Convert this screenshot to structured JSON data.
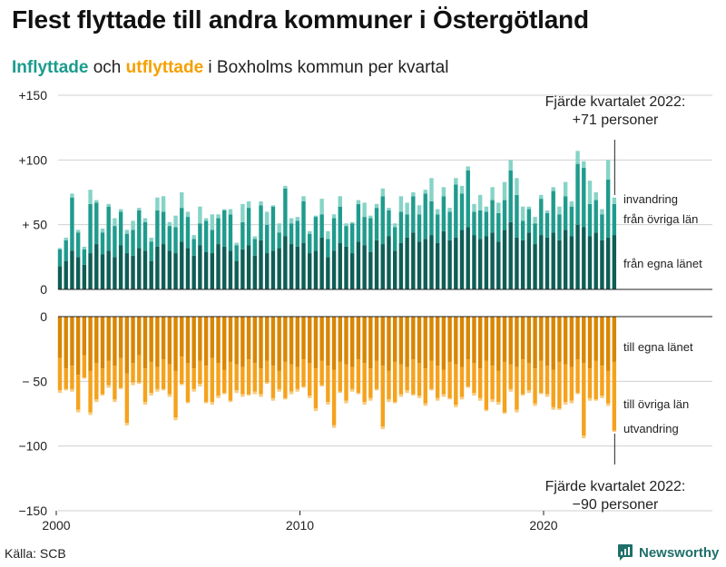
{
  "title": "Flest flyttade till andra kommuner i Östergötland",
  "subtitle": {
    "in_word": "Inflyttade",
    "mid_word": " och ",
    "out_word": "utflyttade",
    "rest": " i Boxholms kommun per kvartal"
  },
  "colors": {
    "in_own": "#0e5e56",
    "in_other": "#1f9b8d",
    "in_imm": "#86d3c7",
    "out_own": "#d98600",
    "out_other": "#f5a21c",
    "out_emi": "#f8cc80"
  },
  "source": "Källa: SCB",
  "brand": "Newsworthy",
  "chart_data": {
    "type": "bar",
    "title": "Inflyttade och utflyttade i Boxholms kommun per kvartal",
    "ylim_top": [
      0,
      150
    ],
    "ylim_bottom": [
      -150,
      0
    ],
    "y_ticks_top": [
      {
        "value": 0,
        "label": "0"
      },
      {
        "value": 50,
        "label": "+ 50"
      },
      {
        "value": 100,
        "label": "+100"
      },
      {
        "value": 150,
        "label": "+150"
      }
    ],
    "y_ticks_bottom": [
      {
        "value": 0,
        "label": "0"
      },
      {
        "value": -50,
        "label": "− 50"
      },
      {
        "value": -100,
        "label": "−100"
      },
      {
        "value": -150,
        "label": "−150"
      }
    ],
    "x_ticks": [
      {
        "year": 2000,
        "label": "2000"
      },
      {
        "year": 2010,
        "label": "2010"
      },
      {
        "year": 2020,
        "label": "2020"
      }
    ],
    "start_year": 2000,
    "quarters": 92,
    "in_series": [
      {
        "name": "från egna länet",
        "key": "own",
        "values": [
          18,
          22,
          30,
          25,
          19,
          28,
          35,
          27,
          30,
          25,
          34,
          28,
          26,
          32,
          30,
          22,
          33,
          35,
          30,
          28,
          37,
          32,
          26,
          34,
          29,
          28,
          35,
          33,
          30,
          22,
          31,
          34,
          26,
          38,
          28,
          30,
          32,
          41,
          35,
          33,
          36,
          28,
          30,
          40,
          25,
          30,
          36,
          33,
          28,
          37,
          34,
          29,
          38,
          35,
          41,
          30,
          36,
          40,
          44,
          37,
          39,
          42,
          36,
          45,
          38,
          40,
          46,
          48,
          42,
          39,
          41,
          44,
          37,
          46,
          52,
          40,
          38,
          44,
          35,
          42,
          40,
          44,
          38,
          46,
          41,
          50,
          48,
          41,
          44,
          38,
          40,
          42
        ]
      },
      {
        "name": "från övriga län",
        "key": "other",
        "values": [
          13,
          16,
          41,
          19,
          12,
          38,
          32,
          17,
          34,
          24,
          26,
          15,
          20,
          29,
          22,
          15,
          28,
          25,
          19,
          20,
          26,
          24,
          13,
          17,
          24,
          18,
          20,
          28,
          28,
          12,
          21,
          29,
          13,
          27,
          22,
          34,
          12,
          37,
          16,
          20,
          32,
          15,
          26,
          18,
          14,
          25,
          28,
          16,
          23,
          29,
          22,
          26,
          25,
          37,
          20,
          18,
          24,
          18,
          28,
          21,
          35,
          26,
          22,
          27,
          22,
          41,
          28,
          44,
          18,
          22,
          19,
          25,
          22,
          23,
          40,
          33,
          15,
          18,
          16,
          28,
          19,
          32,
          20,
          26,
          23,
          47,
          46,
          25,
          25,
          20,
          45,
          24
        ]
      },
      {
        "name": "invandring",
        "key": "imm",
        "values": [
          1,
          2,
          3,
          2,
          2,
          11,
          2,
          3,
          2,
          6,
          2,
          3,
          7,
          2,
          3,
          3,
          10,
          12,
          3,
          9,
          12,
          4,
          3,
          13,
          2,
          12,
          3,
          1,
          4,
          2,
          14,
          5,
          2,
          3,
          10,
          1,
          7,
          2,
          4,
          3,
          4,
          2,
          1,
          12,
          6,
          3,
          8,
          2,
          1,
          3,
          11,
          2,
          3,
          6,
          2,
          3,
          12,
          9,
          3,
          7,
          3,
          18,
          4,
          7,
          3,
          5,
          6,
          3,
          6,
          12,
          4,
          10,
          8,
          14,
          8,
          13,
          11,
          2,
          5,
          3,
          2,
          3,
          6,
          11,
          4,
          10,
          5,
          18,
          6,
          4,
          15,
          5
        ]
      }
    ],
    "out_series": [
      {
        "name": "till egna länet",
        "key": "own",
        "values": [
          -32,
          -40,
          -38,
          -45,
          -30,
          -42,
          -36,
          -40,
          -34,
          -38,
          -32,
          -44,
          -36,
          -30,
          -40,
          -35,
          -39,
          -33,
          -37,
          -42,
          -31,
          -36,
          -40,
          -34,
          -38,
          -32,
          -36,
          -41,
          -35,
          -37,
          -39,
          -33,
          -36,
          -40,
          -34,
          -38,
          -42,
          -35,
          -37,
          -39,
          -33,
          -36,
          -40,
          -34,
          -38,
          -41,
          -35,
          -37,
          -39,
          -33,
          -36,
          -40,
          -34,
          -38,
          -42,
          -35,
          -37,
          -39,
          -33,
          -36,
          -40,
          -34,
          -38,
          -41,
          -35,
          -37,
          -39,
          -33,
          -36,
          -40,
          -34,
          -38,
          -42,
          -35,
          -37,
          -39,
          -33,
          -36,
          -40,
          -34,
          -38,
          -41,
          -35,
          -37,
          -39,
          -33,
          -36,
          -40,
          -34,
          -38,
          -42,
          -35
        ]
      },
      {
        "name": "till övriga län",
        "key": "other",
        "values": [
          -25,
          -16,
          -18,
          -27,
          -17,
          -32,
          -28,
          -20,
          -19,
          -26,
          -23,
          -38,
          -15,
          -21,
          -26,
          -24,
          -17,
          -23,
          -23,
          -36,
          -21,
          -30,
          -16,
          -18,
          -28,
          -34,
          -25,
          -18,
          -30,
          -20,
          -21,
          -27,
          -22,
          -20,
          -17,
          -25,
          -14,
          -28,
          -21,
          -17,
          -21,
          -25,
          -31,
          -19,
          -28,
          -43,
          -23,
          -28,
          -17,
          -26,
          -30,
          -23,
          -22,
          -47,
          -22,
          -31,
          -23,
          -18,
          -27,
          -25,
          -27,
          -22,
          -25,
          -19,
          -28,
          -31,
          -23,
          -21,
          -23,
          -23,
          -38,
          -26,
          -24,
          -39,
          -19,
          -33,
          -27,
          -21,
          -27,
          -25,
          -22,
          -29,
          -36,
          -29,
          -26,
          -26,
          -56,
          -23,
          -30,
          -23,
          -25,
          -53
        ]
      },
      {
        "name": "utvandring",
        "key": "emi",
        "values": [
          -2,
          -1,
          -2,
          -2,
          -1,
          -2,
          -2,
          -1,
          -2,
          -2,
          -1,
          -2,
          -2,
          -1,
          -2,
          -2,
          -2,
          -1,
          -2,
          -2,
          -1,
          -1,
          -2,
          -2,
          -1,
          -2,
          -2,
          -1,
          -1,
          -2,
          -2,
          -1,
          -2,
          -2,
          -1,
          -2,
          -2,
          -1,
          -2,
          -2,
          -1,
          -2,
          -2,
          -1,
          -2,
          -2,
          -1,
          -2,
          -2,
          -1,
          -2,
          -2,
          -1,
          -2,
          -2,
          -1,
          -2,
          -2,
          -1,
          -2,
          -2,
          -1,
          -2,
          -2,
          -1,
          -2,
          -2,
          -1,
          -2,
          -2,
          -1,
          -2,
          -2,
          -1,
          -2,
          -2,
          -1,
          -2,
          -2,
          -1,
          -2,
          -2,
          -1,
          -2,
          -2,
          -1,
          -2,
          -2,
          -1,
          -2,
          -2,
          -1
        ]
      }
    ],
    "series_labels_top": [
      "invandring",
      "från övriga län",
      "från egna länet"
    ],
    "series_labels_bottom": [
      "till egna länet",
      "till övriga län",
      "utvandring"
    ],
    "annotation_top": {
      "line1": "Fjärde kvartalet 2022:",
      "line2": "+71 personer",
      "value": 71
    },
    "annotation_bottom": {
      "line1": "Fjärde kvartalet 2022:",
      "line2": "−90 personer",
      "value": -90
    }
  }
}
